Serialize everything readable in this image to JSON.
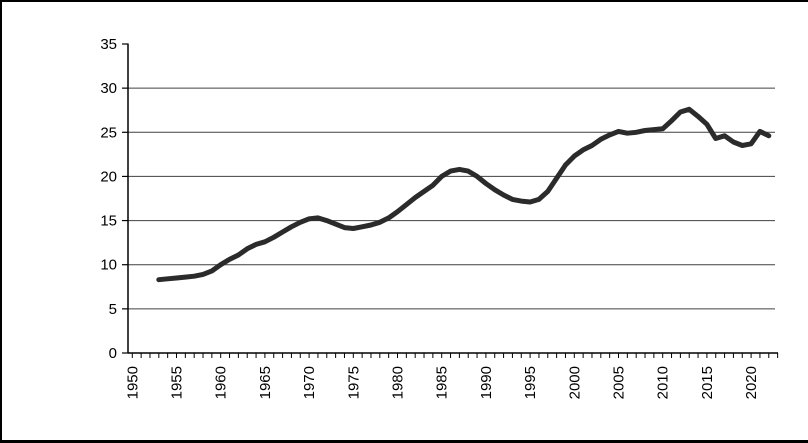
{
  "figure": {
    "background_color": "#ffffff",
    "border_color": "#000000"
  },
  "chart_data": {
    "type": "line",
    "title": "",
    "xlabel": "",
    "ylabel": "",
    "legend": "none",
    "grid": "horizontal-only",
    "gridline_values": [
      5,
      10,
      15,
      20,
      25,
      30
    ],
    "ylim": [
      0,
      35
    ],
    "y_tick_step": 5,
    "y_tick_labels": [
      "0",
      "5",
      "10",
      "15",
      "20",
      "25",
      "30",
      "35"
    ],
    "x_range": [
      1950,
      2023
    ],
    "x_minor_tick_step": 1,
    "x_tick_labels": [
      "1950",
      "1955",
      "1960",
      "1965",
      "1970",
      "1975",
      "1980",
      "1985",
      "1990",
      "1995",
      "2000",
      "2005",
      "2010",
      "2015",
      "2020"
    ],
    "x_label_rotation_deg": -90,
    "line_color": "#2b2b2b",
    "line_width": 5,
    "gridline_color": "#404040",
    "axis_color": "#000000",
    "series": [
      {
        "name": "main-series",
        "x": [
          1953,
          1954,
          1955,
          1956,
          1957,
          1958,
          1959,
          1960,
          1961,
          1962,
          1963,
          1964,
          1965,
          1966,
          1967,
          1968,
          1969,
          1970,
          1971,
          1972,
          1973,
          1974,
          1975,
          1976,
          1977,
          1978,
          1979,
          1980,
          1981,
          1982,
          1983,
          1984,
          1985,
          1986,
          1987,
          1988,
          1989,
          1990,
          1991,
          1992,
          1993,
          1994,
          1995,
          1996,
          1997,
          1998,
          1999,
          2000,
          2001,
          2002,
          2003,
          2004,
          2005,
          2006,
          2007,
          2008,
          2009,
          2010,
          2011,
          2012,
          2013,
          2014,
          2015,
          2016,
          2017,
          2018,
          2019,
          2020,
          2021,
          2022
        ],
        "values": [
          8.3,
          8.4,
          8.5,
          8.6,
          8.7,
          8.9,
          9.3,
          10.0,
          10.6,
          11.1,
          11.8,
          12.3,
          12.6,
          13.1,
          13.7,
          14.3,
          14.8,
          15.2,
          15.3,
          15.0,
          14.6,
          14.2,
          14.1,
          14.3,
          14.5,
          14.8,
          15.3,
          16.0,
          16.8,
          17.6,
          18.3,
          19.0,
          20.0,
          20.6,
          20.8,
          20.6,
          20.0,
          19.2,
          18.5,
          17.9,
          17.4,
          17.2,
          17.1,
          17.4,
          18.3,
          19.8,
          21.3,
          22.3,
          23.0,
          23.5,
          24.2,
          24.7,
          25.1,
          24.9,
          25.0,
          25.2,
          25.3,
          25.4,
          26.3,
          27.3,
          27.6,
          26.8,
          25.9,
          24.3,
          24.6,
          23.9,
          23.5,
          23.7,
          25.1,
          24.6
        ]
      }
    ]
  }
}
